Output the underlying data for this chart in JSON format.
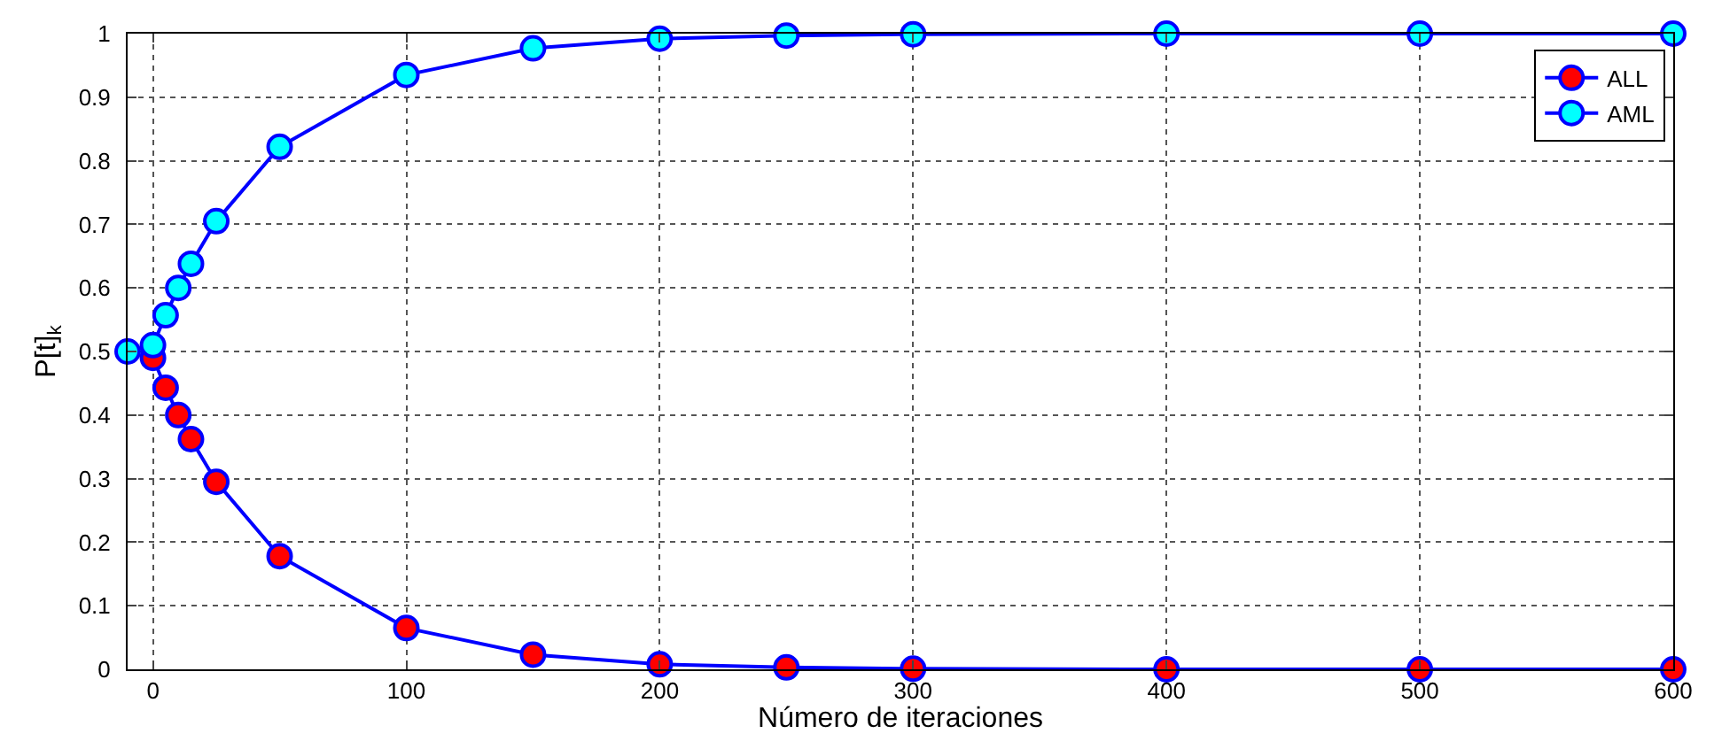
{
  "chart_data": {
    "type": "line",
    "xlabel": "Número de iteraciones",
    "ylabel": "P[t]$_{k}$",
    "x": [
      -10,
      0,
      5,
      10,
      15,
      25,
      50,
      100,
      150,
      200,
      250,
      300,
      400,
      500,
      600
    ],
    "series": [
      {
        "name": "ALL",
        "color": "#ff0000",
        "values": [
          null,
          0.49,
          0.443,
          0.4,
          0.362,
          0.295,
          0.178,
          0.065,
          0.023,
          0.008,
          0.003,
          0.001,
          0,
          0,
          0
        ]
      },
      {
        "name": "AML",
        "color": "#00ffff",
        "values": [
          0.5,
          0.51,
          0.557,
          0.6,
          0.638,
          0.705,
          0.822,
          0.935,
          0.977,
          0.992,
          0.997,
          0.999,
          1,
          1,
          1
        ]
      }
    ],
    "xlim": [
      -10,
      600
    ],
    "xticks": [
      0,
      100,
      200,
      300,
      400,
      500,
      600
    ],
    "ylim": [
      0,
      1
    ],
    "yticks": [
      0,
      0.1,
      0.2,
      0.3,
      0.4,
      0.5,
      0.6,
      0.7,
      0.8,
      0.9,
      1
    ],
    "grid": true,
    "legend": "top right",
    "marker": "circle",
    "line_style": "solid"
  }
}
